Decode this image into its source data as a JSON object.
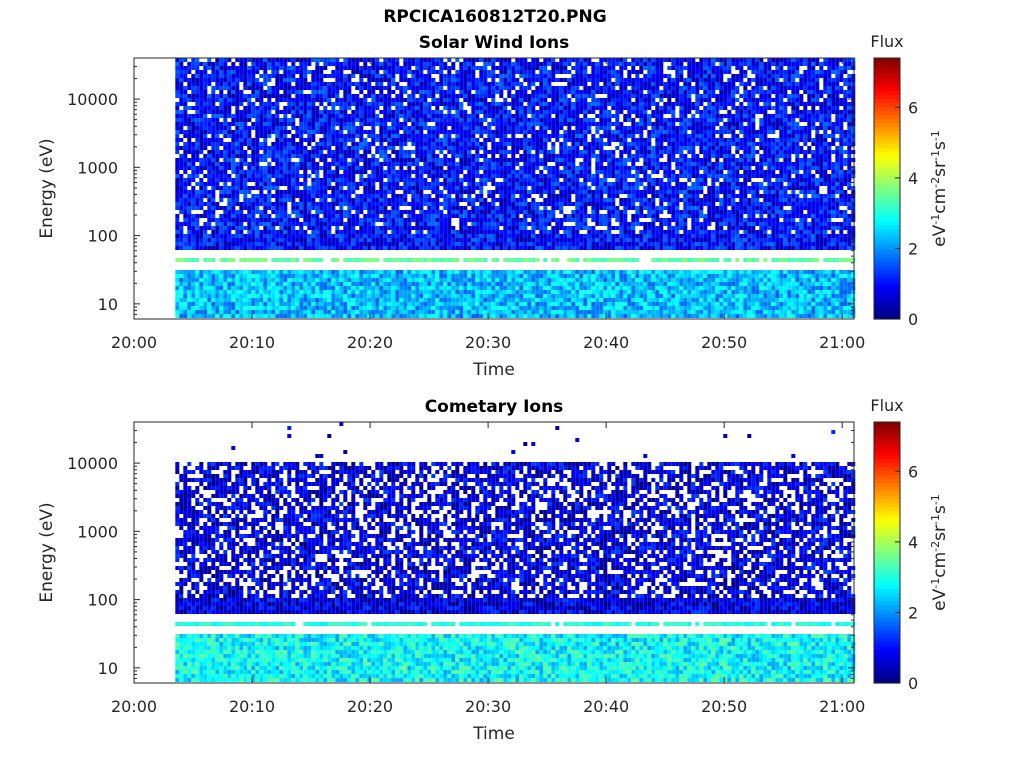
{
  "title": "RPCICA160812T20.PNG",
  "chart_data": [
    {
      "type": "heatmap",
      "title": "Solar Wind Ions",
      "xlabel": "Time",
      "ylabel": "Energy (eV)",
      "x_ticks": [
        "20:00",
        "20:10",
        "20:20",
        "20:30",
        "20:40",
        "20:50",
        "21:00"
      ],
      "x_range": [
        "20:00",
        "21:01"
      ],
      "data_start": "20:03.5",
      "y_scale": "log",
      "y_ticks": [
        "10",
        "100",
        "1000",
        "10000"
      ],
      "y_range": [
        6,
        40000
      ],
      "colorbar": {
        "title": "Flux",
        "label": "eV-1cm-2sr-1s-1",
        "ticks": [
          "0",
          "2",
          "4",
          "6"
        ],
        "range": [
          0,
          7.4
        ],
        "colormap": "jet"
      },
      "features": [
        {
          "description": "strong band",
          "energy_eV": 42,
          "flux": 3.5
        },
        {
          "description": "low energy elevated flux",
          "energy_range_eV": [
            6,
            30
          ],
          "flux": 2.3
        },
        {
          "description": "background",
          "energy_range_eV": [
            60,
            40000
          ],
          "flux": 1.0
        }
      ]
    },
    {
      "type": "heatmap",
      "title": "Cometary Ions",
      "xlabel": "Time",
      "ylabel": "Energy (eV)",
      "x_ticks": [
        "20:00",
        "20:10",
        "20:20",
        "20:30",
        "20:40",
        "20:50",
        "21:00"
      ],
      "x_range": [
        "20:00",
        "21:01"
      ],
      "data_start": "20:03.5",
      "y_scale": "log",
      "y_ticks": [
        "10",
        "100",
        "1000",
        "10000"
      ],
      "y_range": [
        6,
        40000
      ],
      "colorbar": {
        "title": "Flux",
        "label": "eV-1cm-2sr-1s-1",
        "ticks": [
          "0",
          "2",
          "4",
          "6"
        ],
        "range": [
          0,
          7.4
        ],
        "colormap": "jet"
      },
      "features": [
        {
          "description": "band",
          "energy_eV": 42,
          "flux": 3.0
        },
        {
          "description": "low energy elevated flux",
          "energy_range_eV": [
            6,
            30
          ],
          "flux": 2.8
        },
        {
          "description": "background",
          "energy_range_eV": [
            60,
            11000
          ],
          "flux": 0.7
        },
        {
          "description": "sparse high energy",
          "energy_range_eV": [
            11000,
            40000
          ],
          "flux": 0.8
        }
      ]
    }
  ]
}
